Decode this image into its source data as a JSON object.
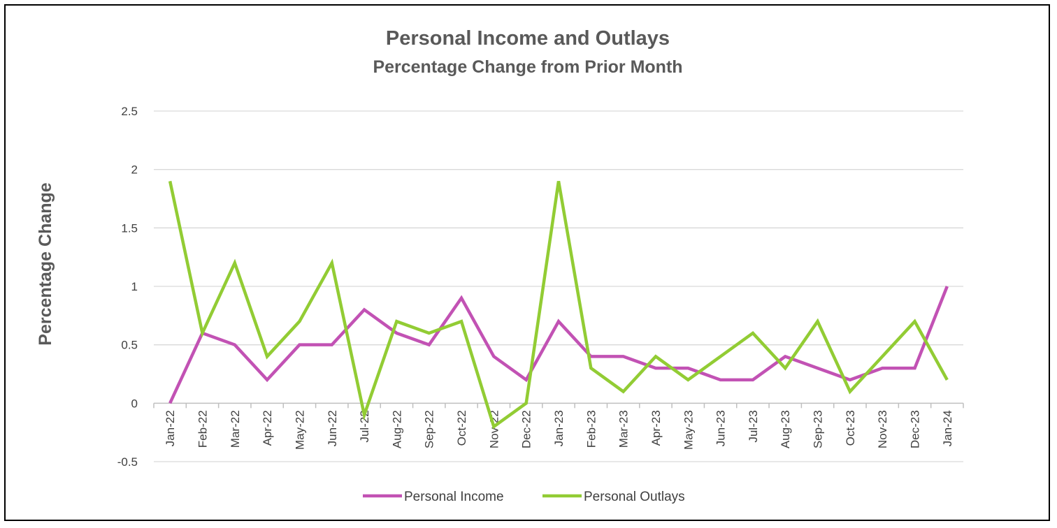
{
  "chart_data": {
    "type": "line",
    "title": "Personal Income and Outlays",
    "subtitle": "Percentage Change from Prior Month",
    "xlabel": "",
    "ylabel": "Percentage Change",
    "ylim": [
      -0.5,
      2.5
    ],
    "yticks": [
      "2.5",
      "2",
      "1.5",
      "1",
      "0.5",
      "0",
      "-0.5"
    ],
    "ytick_values": [
      2.5,
      2,
      1.5,
      1,
      0.5,
      0,
      -0.5
    ],
    "grid": true,
    "legend_position": "bottom",
    "categories": [
      "Jan-22",
      "Feb-22",
      "Mar-22",
      "Apr-22",
      "May-22",
      "Jun-22",
      "Jul-22",
      "Aug-22",
      "Sep-22",
      "Oct-22",
      "Nov-22",
      "Dec-22",
      "Jan-23",
      "Feb-23",
      "Mar-23",
      "Apr-23",
      "May-23",
      "Jun-23",
      "Jul-23",
      "Aug-23",
      "Sep-23",
      "Oct-23",
      "Nov-23",
      "Dec-23",
      "Jan-24"
    ],
    "series": [
      {
        "name": "Personal Income",
        "color": "#C252B4",
        "values": [
          0.0,
          0.6,
          0.5,
          0.2,
          0.5,
          0.5,
          0.8,
          0.6,
          0.5,
          0.9,
          0.4,
          0.2,
          0.7,
          0.4,
          0.4,
          0.3,
          0.3,
          0.2,
          0.2,
          0.4,
          0.3,
          0.2,
          0.3,
          0.3,
          1.0
        ]
      },
      {
        "name": "Personal Outlays",
        "color": "#92CC34",
        "values": [
          1.9,
          0.6,
          1.2,
          0.4,
          0.7,
          1.2,
          -0.1,
          0.7,
          0.6,
          0.7,
          -0.2,
          0.0,
          1.9,
          0.3,
          0.1,
          0.4,
          0.2,
          0.4,
          0.6,
          0.3,
          0.7,
          0.1,
          0.4,
          0.7,
          0.2
        ]
      }
    ]
  }
}
